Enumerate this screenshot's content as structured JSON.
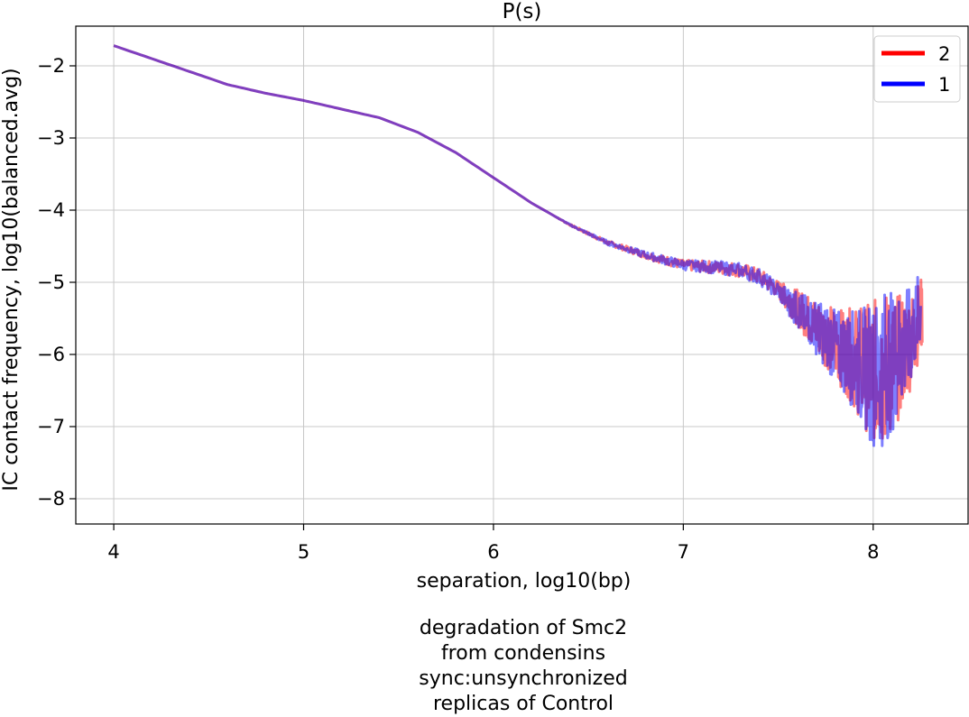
{
  "chart_data": {
    "type": "line",
    "title": "P(s)",
    "xlabel": "separation, log10(bp)",
    "ylabel": "IC contact frequency, log10(balanced.avg)",
    "xlim": [
      3.8,
      8.5
    ],
    "ylim": [
      -8.35,
      -1.45
    ],
    "xticks": [
      4,
      5,
      6,
      7,
      8
    ],
    "yticks": [
      -2,
      -3,
      -4,
      -5,
      -6,
      -7,
      -8
    ],
    "xtick_labels": [
      "4",
      "5",
      "6",
      "7",
      "8"
    ],
    "ytick_labels": [
      "−2",
      "−3",
      "−4",
      "−5",
      "−6",
      "−7",
      "−8"
    ],
    "grid": true,
    "legend_position": "top-right",
    "series": [
      {
        "name": "2",
        "color": "#ff0000",
        "x": [
          4.0,
          4.2,
          4.4,
          4.6,
          4.8,
          5.0,
          5.2,
          5.4,
          5.6,
          5.8,
          6.0,
          6.2,
          6.4,
          6.6,
          6.8,
          7.0,
          7.2,
          7.3,
          7.4,
          7.5,
          7.6,
          7.7,
          7.8,
          7.9,
          8.0,
          8.1,
          8.2,
          8.26
        ],
        "y": [
          -1.72,
          -1.9,
          -2.08,
          -2.26,
          -2.38,
          -2.48,
          -2.6,
          -2.72,
          -2.92,
          -3.2,
          -3.55,
          -3.9,
          -4.2,
          -4.45,
          -4.62,
          -4.76,
          -4.8,
          -4.83,
          -4.92,
          -5.1,
          -5.35,
          -5.6,
          -5.85,
          -6.05,
          -6.25,
          -6.15,
          -5.8,
          -5.4
        ]
      },
      {
        "name": "1",
        "color": "#0000ff",
        "x": [
          4.0,
          4.2,
          4.4,
          4.6,
          4.8,
          5.0,
          5.2,
          5.4,
          5.6,
          5.8,
          6.0,
          6.2,
          6.4,
          6.6,
          6.8,
          7.0,
          7.2,
          7.3,
          7.4,
          7.5,
          7.6,
          7.7,
          7.8,
          7.9,
          8.0,
          8.1,
          8.2,
          8.25
        ],
        "y": [
          -1.72,
          -1.9,
          -2.08,
          -2.26,
          -2.38,
          -2.48,
          -2.6,
          -2.72,
          -2.92,
          -3.2,
          -3.55,
          -3.9,
          -4.2,
          -4.45,
          -4.62,
          -4.76,
          -4.8,
          -4.83,
          -4.92,
          -5.12,
          -5.38,
          -5.62,
          -5.88,
          -6.08,
          -6.28,
          -6.1,
          -5.75,
          -5.35
        ]
      }
    ]
  },
  "caption": {
    "lines": [
      "degradation of Smc2",
      "from condensins",
      "sync:unsynchronized",
      "replicas of Control"
    ]
  }
}
